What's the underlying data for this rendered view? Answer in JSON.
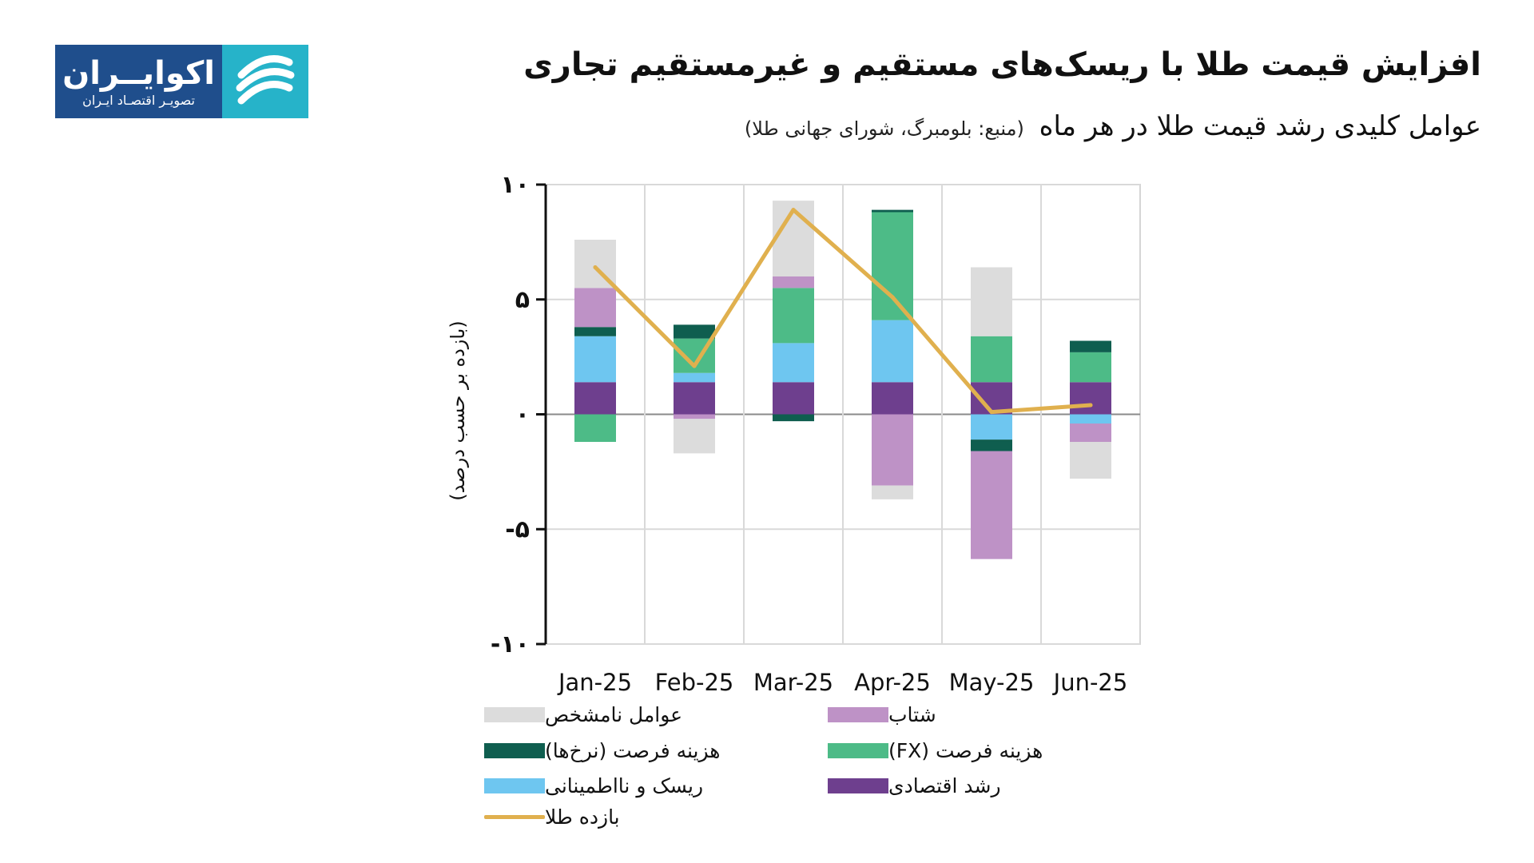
{
  "brand": {
    "name": "اکوایــران",
    "tagline": "تصویـر اقتصـاد ایـران",
    "bg_color": "#1f4e8c",
    "mark_color": "#26b3c9",
    "mark_icon": "stripes-logo-icon"
  },
  "header": {
    "title": "افزایش قیمت طلا با ریسک‌های مستقیم و غیرمستقیم تجاری",
    "subtitle": "عوامل کلیدی رشد قیمت طلا در هر ماه",
    "source": "(منبع: بلومبرگ، شورای جهانی طلا)"
  },
  "chart_data": {
    "type": "bar",
    "stacked": true,
    "categories": [
      "Jan-25",
      "Feb-25",
      "Mar-25",
      "Apr-25",
      "May-25",
      "Jun-25"
    ],
    "ylabel": "(بازده بر حسب درصد)",
    "ylim": [
      -10,
      10
    ],
    "yticks": [
      10,
      5,
      0,
      -5,
      -10
    ],
    "ytick_labels": [
      "۱۰",
      "۵",
      "۰",
      "-۵",
      "-۱۰"
    ],
    "grid": true,
    "legend_position": "bottom",
    "series": [
      {
        "name": "رشد اقتصادی",
        "color": "#6e3f8e",
        "values": [
          1.4,
          1.4,
          1.4,
          1.4,
          1.4,
          1.4
        ]
      },
      {
        "name": "ریسک و نااطمینانی",
        "color": "#6ec6f0",
        "values": [
          2.0,
          0.4,
          1.7,
          2.7,
          -1.1,
          -0.4
        ]
      },
      {
        "name": "هزینه فرصت (FX)",
        "color": "#4dbb87",
        "values": [
          -1.2,
          1.5,
          2.4,
          4.7,
          2.0,
          1.3
        ]
      },
      {
        "name": "هزینه فرصت (نرخ‌ها)",
        "color": "#0f5e4f",
        "values": [
          0.4,
          0.6,
          -0.3,
          0.1,
          -0.5,
          0.5
        ]
      },
      {
        "name": "شتاب",
        "color": "#be92c6",
        "values": [
          1.7,
          -0.2,
          0.5,
          -3.1,
          -4.7,
          -0.8
        ]
      },
      {
        "name": "عوامل نامشخص",
        "color": "#dcdcdc",
        "values": [
          2.1,
          -1.5,
          3.3,
          -0.6,
          3.0,
          -1.6
        ]
      }
    ],
    "line": {
      "name": "بازده طلا",
      "color": "#e0b04e",
      "values": [
        6.4,
        2.1,
        8.9,
        5.1,
        0.1,
        0.4
      ]
    }
  }
}
